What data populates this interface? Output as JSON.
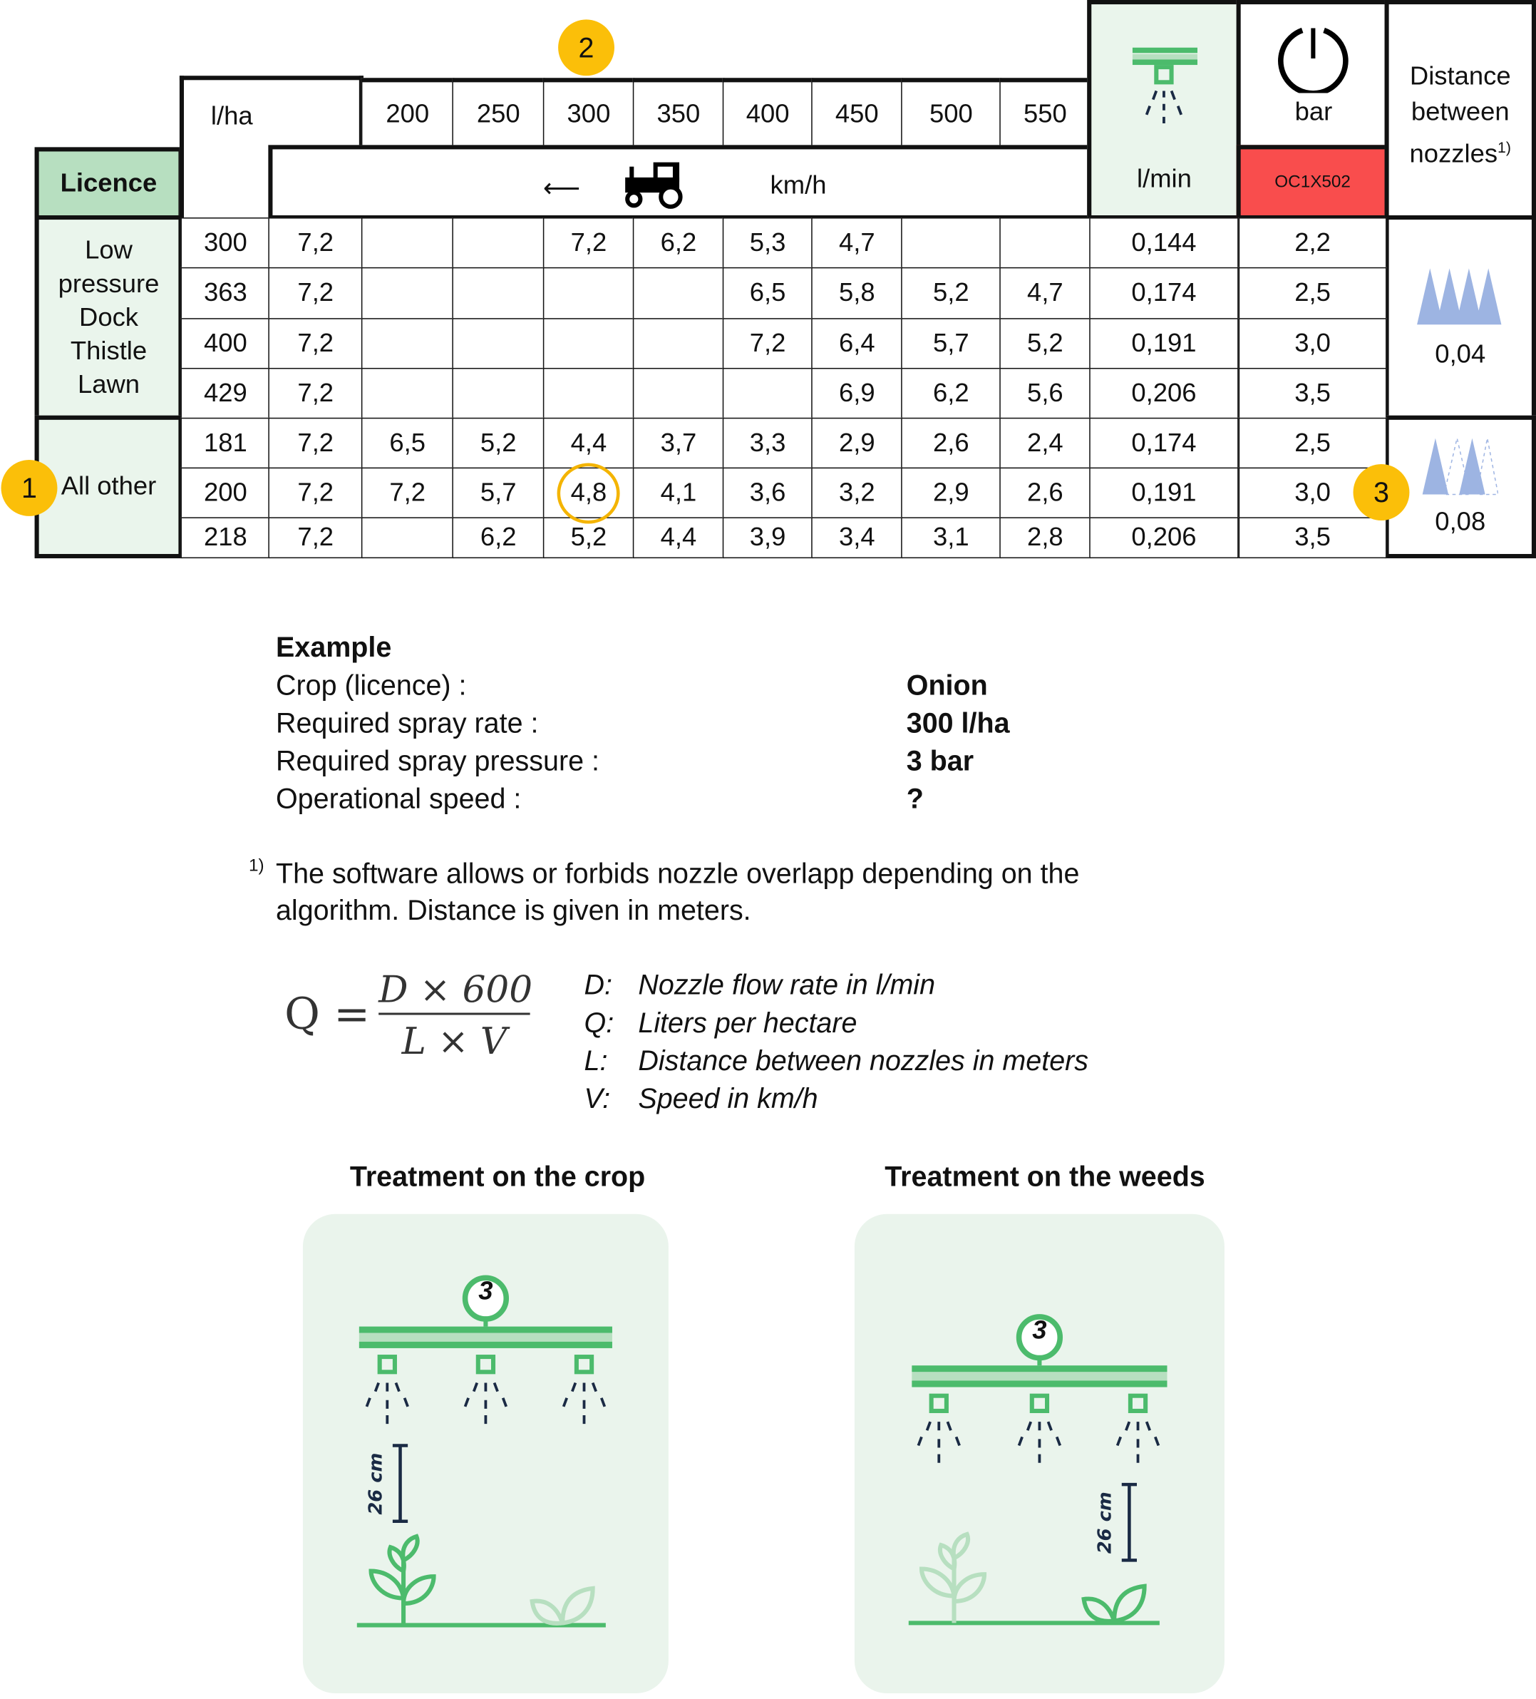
{
  "table": {
    "licence_header": "Licence",
    "lha_label": "l/ha",
    "speed_headers": [
      "200",
      "250",
      "300",
      "350",
      "400",
      "450",
      "500",
      "550"
    ],
    "kmh_label": "km/h",
    "lmin_label": "l/min",
    "bar_label": "bar",
    "nozzle_code": "OC1X502",
    "distance_header": "Distance between nozzles",
    "distance_footnote_mark": "1)",
    "groups": [
      {
        "label_lines": [
          "Low",
          "pressure",
          "Dock",
          "Thistle",
          "Lawn"
        ],
        "distance": "0,04"
      },
      {
        "label_lines": [
          "All other"
        ],
        "distance": "0,08"
      }
    ],
    "rows": [
      {
        "lha": "300",
        "values": [
          "7,2",
          "",
          "",
          "7,2",
          "6,2",
          "5,3",
          "4,7",
          "",
          ""
        ],
        "lmin": "0,144",
        "bar": "2,2"
      },
      {
        "lha": "363",
        "values": [
          "7,2",
          "",
          "",
          "",
          "",
          "6,5",
          "5,8",
          "5,2",
          "4,7"
        ],
        "lmin": "0,174",
        "bar": "2,5"
      },
      {
        "lha": "400",
        "values": [
          "7,2",
          "",
          "",
          "",
          "",
          "7,2",
          "6,4",
          "5,7",
          "5,2"
        ],
        "lmin": "0,191",
        "bar": "3,0"
      },
      {
        "lha": "429",
        "values": [
          "7,2",
          "",
          "",
          "",
          "",
          "",
          "6,9",
          "6,2",
          "5,6"
        ],
        "lmin": "0,206",
        "bar": "3,5"
      },
      {
        "lha": "181",
        "values": [
          "7,2",
          "6,5",
          "5,2",
          "4,4",
          "3,7",
          "3,3",
          "2,9",
          "2,6",
          "2,4"
        ],
        "lmin": "0,174",
        "bar": "2,5"
      },
      {
        "lha": "200",
        "values": [
          "7,2",
          "7,2",
          "5,7",
          "4,8",
          "4,1",
          "3,6",
          "3,2",
          "2,9",
          "2,6"
        ],
        "lmin": "0,191",
        "bar": "3,0"
      },
      {
        "lha": "218",
        "values": [
          "7,2",
          "",
          "6,2",
          "5,2",
          "4,4",
          "3,9",
          "3,4",
          "3,1",
          "2,8"
        ],
        "lmin": "0,206",
        "bar": "3,5"
      }
    ],
    "highlighted_value": "4,8",
    "markers": [
      "1",
      "2",
      "3"
    ],
    "colors": {
      "licence_header": "#b7dfc0",
      "light_green": "#eaf5ec",
      "nozzle_code_bg": "#f94d4d",
      "marker": "#fbbf09",
      "accent_green": "#4cbb6c"
    }
  },
  "example": {
    "title": "Example",
    "rows": [
      {
        "label": "Crop (licence) :",
        "value": "Onion"
      },
      {
        "label": "Required spray rate :",
        "value": "300 l/ha"
      },
      {
        "label": "Required spray pressure :",
        "value": "3 bar"
      },
      {
        "label": "Operational speed :",
        "value": "?"
      }
    ]
  },
  "footnote": {
    "mark": "1)",
    "line1": "The software allows or forbids nozzle overlapp depending on the",
    "line2": "algorithm. Distance is given in meters."
  },
  "formula": {
    "lhs": "Q =",
    "numerator": "D × 600",
    "denominator": "L × V",
    "legend": [
      {
        "sym": "D:",
        "text": "Nozzle flow rate in l/min"
      },
      {
        "sym": "Q:",
        "text": "Liters per hectare"
      },
      {
        "sym": "L:",
        "text": "Distance between nozzles in meters"
      },
      {
        "sym": "V:",
        "text": "Speed in km/h"
      }
    ]
  },
  "panels": [
    {
      "title": "Treatment on the crop",
      "badge": "3",
      "height_label": "26 cm"
    },
    {
      "title": "Treatment on the weeds",
      "badge": "3",
      "height_label": "26 cm"
    }
  ]
}
